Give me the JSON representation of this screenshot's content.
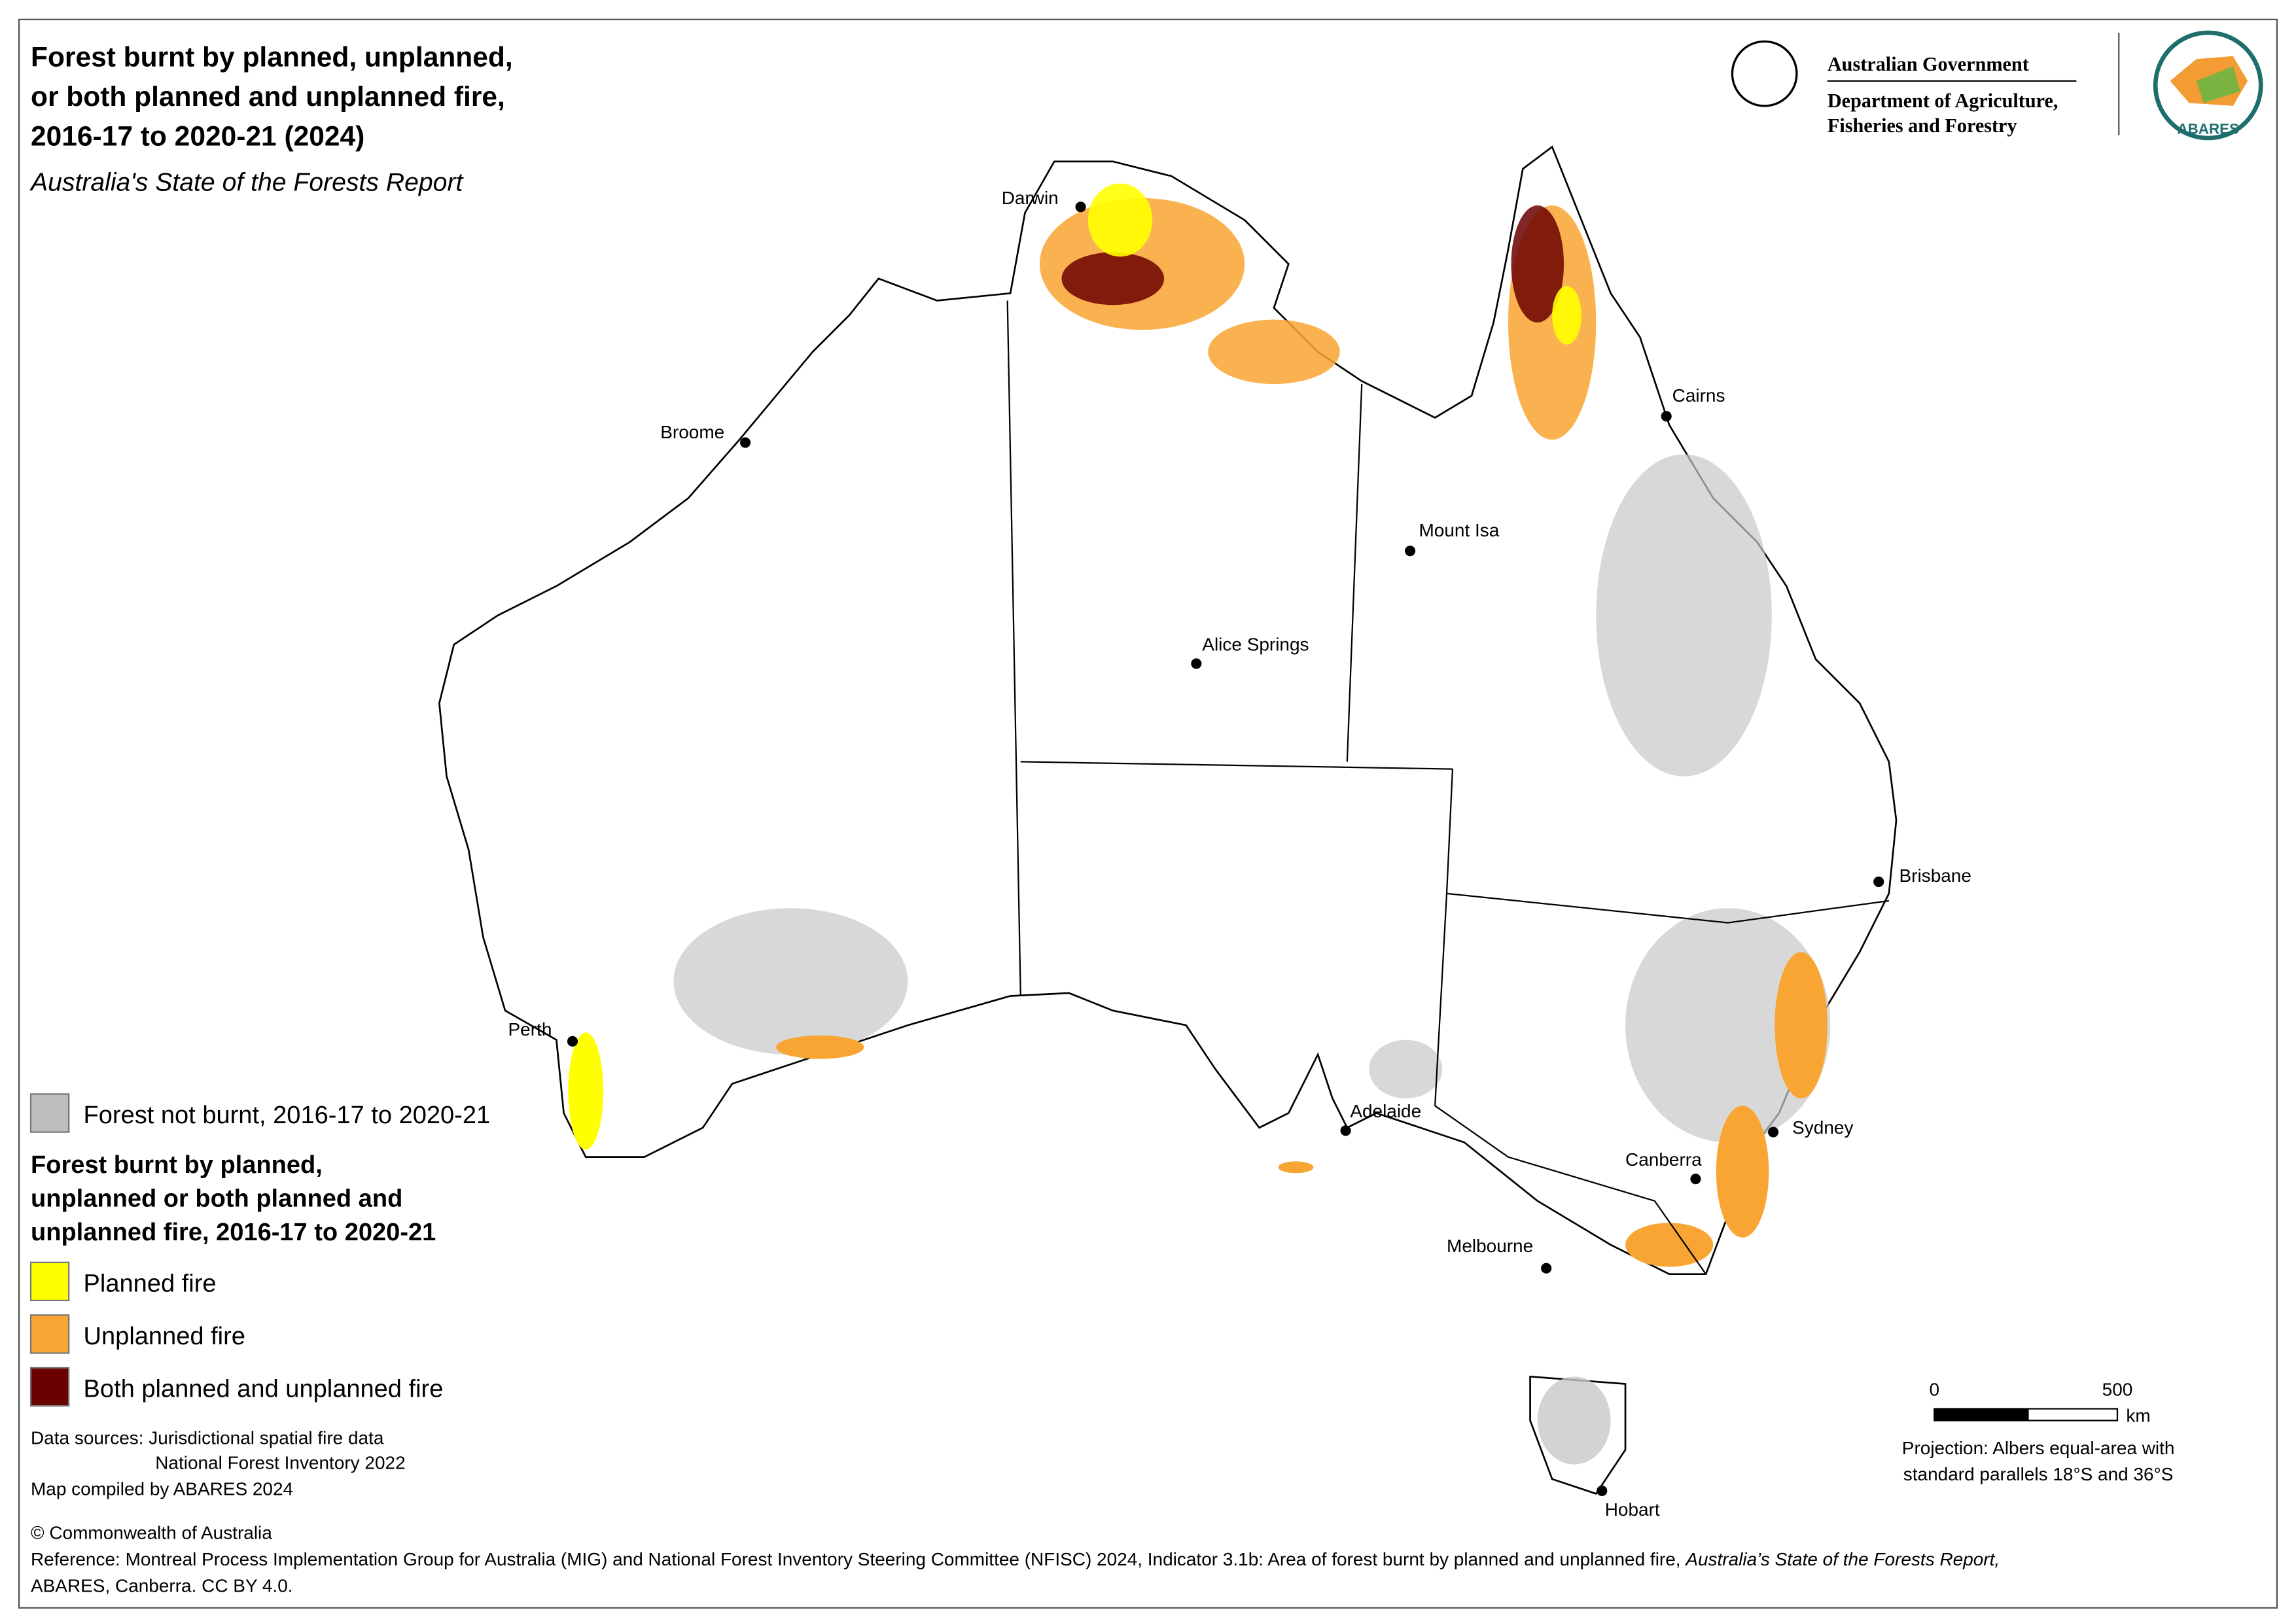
{
  "header": {
    "title_lines": [
      "Forest burnt by planned, unplanned,",
      "or both planned and unplanned fire,",
      "2016-17 to 2020-21 (2024)"
    ],
    "subtitle": "Australia's State of the Forests Report"
  },
  "logos": {
    "government": "Australian Government",
    "department_lines": [
      "Department of Agriculture,",
      "Fisheries and Forestry"
    ],
    "abares": "ABARES"
  },
  "cities": [
    "Darwin",
    "Broome",
    "Cairns",
    "Mount Isa",
    "Alice Springs",
    "Brisbane",
    "Perth",
    "Adelaide",
    "Sydney",
    "Canberra",
    "Melbourne",
    "Hobart"
  ],
  "legend": {
    "not_burnt": {
      "label": "Forest not burnt, 2016-17 to 2020-21",
      "color": "#bdbdbd"
    },
    "heading_lines": [
      "Forest burnt by planned,",
      "unplanned or both planned and",
      "unplanned fire, 2016-17 to 2020-21"
    ],
    "items": [
      {
        "label": "Planned fire",
        "color": "#ffff00"
      },
      {
        "label": "Unplanned fire",
        "color": "#f9a533"
      },
      {
        "label": "Both planned and unplanned fire",
        "color": "#6b0000"
      }
    ]
  },
  "sources": [
    "Data sources: Jurisdictional spatial fire data",
    "National Forest Inventory 2022",
    "Map compiled by ABARES 2024"
  ],
  "scale_bar": {
    "ticks": [
      0,
      500
    ],
    "unit": "km"
  },
  "projection_lines": [
    "Projection: Albers equal-area with",
    "standard parallels 18°S and 36°S"
  ],
  "copyright": "© Commonwealth of Australia",
  "reference": {
    "line1": "Reference: Montreal Process Implementation Group for Australia (MIG) and National Forest Inventory Steering Committee (NFISC) 2024, Indicator 3.1b: Area of forest burnt by planned and unplanned fire, ",
    "line1_italic": "Australia’s State of the Forests Report,",
    "line2": "ABARES, Canberra. CC BY 4.0."
  }
}
